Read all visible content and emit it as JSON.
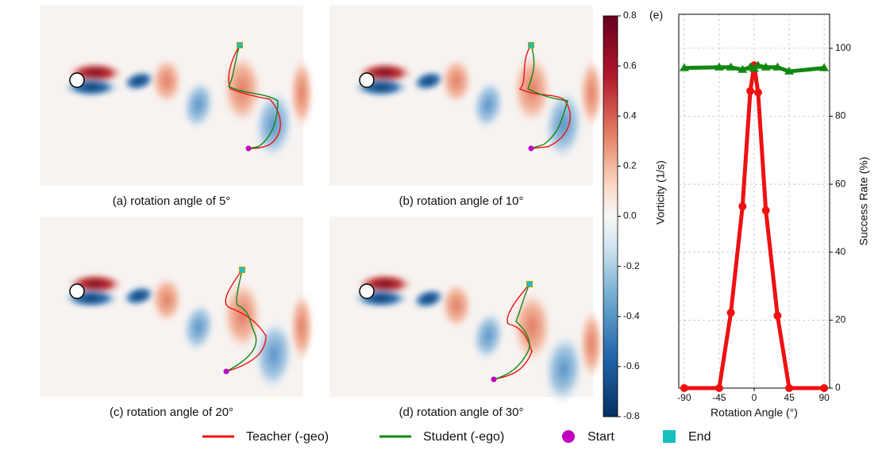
{
  "panels": [
    {
      "caption": "(a) rotation angle of 5°"
    },
    {
      "caption": "(b) rotation angle of 10°"
    },
    {
      "caption": "(c) rotation angle of 20°"
    },
    {
      "caption": "(d) rotation angle of 30°"
    }
  ],
  "colorbar": {
    "label": "Vorticity (1/s)",
    "lim": [
      -0.8,
      0.8
    ],
    "ticks": [
      0.8,
      0.6,
      0.4,
      0.2,
      {
        "value": 0,
        "label": "0.0"
      },
      -0.2,
      -0.4,
      -0.6,
      -0.8
    ]
  },
  "markers": [
    {
      "name": "Start",
      "color": "#c000c0"
    },
    {
      "name": "End",
      "color": "#17bfbf"
    }
  ],
  "chart_data": {
    "type": "line",
    "panel_label": "(e)",
    "x_label": "Rotation Angle (°)",
    "y_label": "Success Rate (%)",
    "x": [
      -90,
      -45,
      -30,
      -15,
      -5,
      0,
      5,
      15,
      30,
      45,
      90
    ],
    "xlim": [
      -97,
      97
    ],
    "xticks": [
      -90,
      -45,
      0,
      45,
      90
    ],
    "ylim": [
      0,
      110
    ],
    "yticks": [
      0,
      20,
      40,
      60,
      80,
      100
    ],
    "grid": true,
    "series": [
      {
        "name": "Teacher (-geo)",
        "color": "#ee1111",
        "marker": "circle",
        "values": [
          0,
          0,
          22.2,
          53.5,
          87.4,
          95,
          87,
          52.3,
          21.3,
          0,
          0
        ]
      },
      {
        "name": "Student (-ego)",
        "color": "#118811",
        "marker": "triangle",
        "values": [
          94.2,
          94.4,
          94.4,
          93.7,
          94.4,
          94,
          94.9,
          94.4,
          94.4,
          93.2,
          94.2
        ]
      }
    ]
  }
}
